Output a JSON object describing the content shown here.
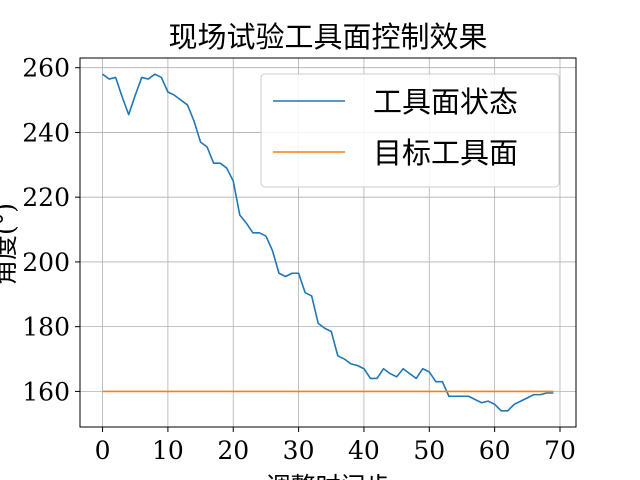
{
  "chart_data": {
    "type": "line",
    "title": "现场试验工具面控制效果",
    "xlabel": "调整时间步",
    "ylabel": "角度(°)",
    "xlim": [
      -3.45,
      72.45
    ],
    "ylim": [
      149.0,
      263.0
    ],
    "xticks": [
      0,
      10,
      20,
      30,
      40,
      50,
      60,
      70
    ],
    "yticks": [
      160,
      180,
      200,
      220,
      240,
      260
    ],
    "grid": true,
    "legend_position": "top-right",
    "series": [
      {
        "name": "工具面状态",
        "color": "#1f77b4",
        "x": [
          0,
          1,
          2,
          3,
          4,
          5,
          6,
          7,
          8,
          9,
          10,
          11,
          12,
          13,
          14,
          15,
          16,
          17,
          18,
          19,
          20,
          21,
          22,
          23,
          24,
          25,
          26,
          27,
          28,
          29,
          30,
          31,
          32,
          33,
          34,
          35,
          36,
          37,
          38,
          39,
          40,
          41,
          42,
          43,
          44,
          45,
          46,
          47,
          48,
          49,
          50,
          51,
          52,
          53,
          54,
          55,
          56,
          57,
          58,
          59,
          60,
          61,
          62,
          63,
          64,
          65,
          66,
          67,
          68,
          69
        ],
        "values": [
          258.0,
          256.5,
          257.0,
          251.0,
          245.5,
          251.5,
          257.0,
          256.5,
          258.0,
          257.0,
          252.5,
          251.5,
          250.0,
          248.5,
          243.5,
          237.0,
          235.5,
          230.5,
          230.5,
          229.0,
          225.0,
          214.5,
          212.0,
          209.0,
          209.0,
          208.0,
          203.5,
          196.5,
          195.5,
          196.5,
          196.5,
          190.5,
          189.5,
          181.0,
          179.5,
          178.5,
          171.0,
          170.0,
          168.5,
          168.0,
          167.0,
          164.0,
          164.0,
          167.0,
          165.5,
          164.5,
          167.0,
          165.5,
          164.0,
          167.0,
          166.0,
          163.0,
          163.0,
          158.5,
          158.5,
          158.5,
          158.5,
          157.5,
          156.5,
          157.0,
          156.0,
          154.0,
          154.0,
          156.0,
          157.0,
          158.0,
          159.0,
          159.0,
          159.5,
          159.5
        ]
      },
      {
        "name": "目标工具面",
        "color": "#ff7f0e",
        "x": [
          0,
          69
        ],
        "values": [
          160,
          160
        ]
      }
    ]
  }
}
